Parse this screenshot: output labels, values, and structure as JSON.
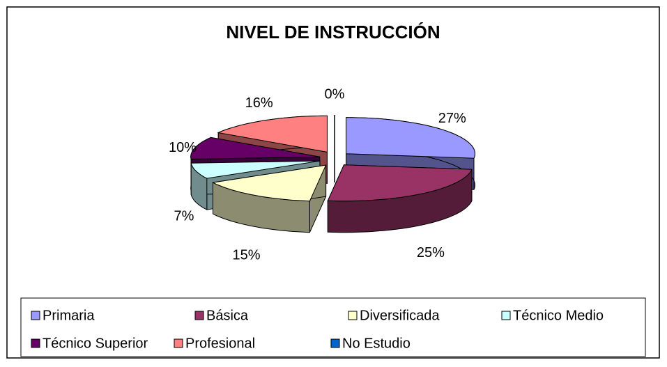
{
  "chart_data": {
    "type": "pie",
    "title": "NIVEL DE INSTRUCCIÓN",
    "categories": [
      "Primaria",
      "Básica",
      "Diversificada",
      "Técnico Medio",
      "Técnico Superior",
      "Profesional",
      "No Estudio"
    ],
    "values": [
      27,
      25,
      15,
      7,
      10,
      16,
      0
    ],
    "value_labels": [
      "27%",
      "25%",
      "15%",
      "7%",
      "10%",
      "16%",
      "0%"
    ],
    "colors": [
      "#9999ff",
      "#993366",
      "#ffffcc",
      "#ccffff",
      "#660066",
      "#ff8080",
      "#0066cc"
    ],
    "legend": "bottom"
  }
}
